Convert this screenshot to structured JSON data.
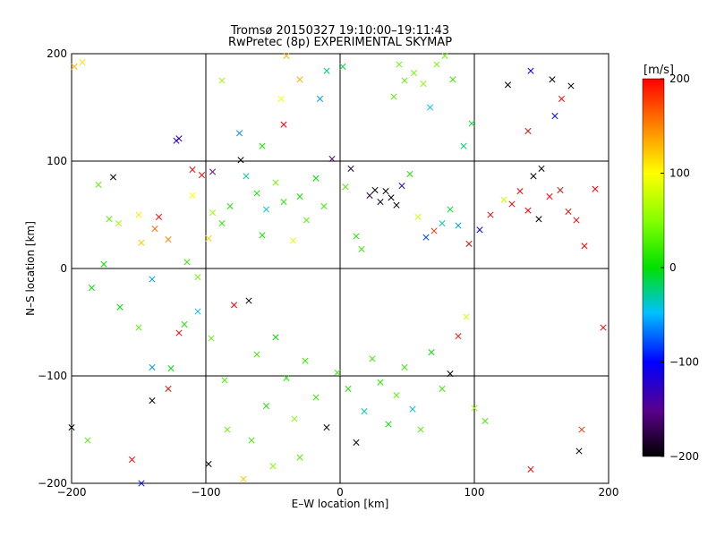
{
  "chart_data": {
    "type": "scatter",
    "title_line1": "Tromsø 20150327 19:10:00–19:11:43",
    "title_line2": "RwPretec (8p) EXPERIMENTAL SKYMAP",
    "xlabel": "E–W location [km]",
    "ylabel": "N–S location [km]",
    "xlim": [
      -200,
      200
    ],
    "ylim": [
      -200,
      200
    ],
    "xticks": [
      -200,
      -100,
      0,
      100,
      200
    ],
    "yticks": [
      -200,
      -100,
      0,
      100,
      200
    ],
    "grid": true,
    "colorbar": {
      "label": "[m/s]",
      "range": [
        -200,
        200
      ],
      "ticks": [
        200,
        100,
        0,
        -100,
        -200
      ]
    },
    "series": [
      {
        "values_note": "x (km), y (km), velocity (m/s), marker",
        "points": [
          [
            -192,
            192,
            110,
            "x"
          ],
          [
            -180,
            78,
            35,
            "x"
          ],
          [
            -172,
            46,
            35,
            "x"
          ],
          [
            -169,
            85,
            -200,
            "x"
          ],
          [
            -165,
            42,
            60,
            "x"
          ],
          [
            -150,
            50,
            110,
            "x"
          ],
          [
            -148,
            24,
            120,
            "x"
          ],
          [
            -138,
            37,
            160,
            "x"
          ],
          [
            -135,
            48,
            200,
            "x"
          ],
          [
            -128,
            27,
            150,
            "x"
          ],
          [
            -122,
            119,
            -130,
            "x"
          ],
          [
            -110,
            92,
            200,
            "x"
          ],
          [
            -103,
            87,
            200,
            "x"
          ],
          [
            -98,
            28,
            120,
            "x"
          ],
          [
            -95,
            52,
            60,
            "x"
          ],
          [
            -88,
            42,
            20,
            "x"
          ],
          [
            -82,
            58,
            10,
            "x"
          ],
          [
            -74,
            101,
            -200,
            "x"
          ],
          [
            -70,
            86,
            -30,
            "x"
          ],
          [
            -62,
            70,
            5,
            "x"
          ],
          [
            -58,
            31,
            10,
            "x"
          ],
          [
            -55,
            55,
            -40,
            "x"
          ],
          [
            -48,
            80,
            40,
            "x"
          ],
          [
            -42,
            62,
            15,
            "x"
          ],
          [
            -35,
            26,
            90,
            "x"
          ],
          [
            -30,
            67,
            5,
            "x"
          ],
          [
            -25,
            45,
            30,
            "x"
          ],
          [
            -18,
            84,
            0,
            "x"
          ],
          [
            -12,
            58,
            20,
            "x"
          ],
          [
            -6,
            102,
            -150,
            "x"
          ],
          [
            4,
            76,
            30,
            "x"
          ],
          [
            8,
            93,
            -180,
            "x"
          ],
          [
            12,
            30,
            10,
            "x"
          ],
          [
            16,
            18,
            20,
            "x"
          ],
          [
            22,
            68,
            -180,
            "x"
          ],
          [
            26,
            73,
            -200,
            "x"
          ],
          [
            30,
            62,
            -190,
            "x"
          ],
          [
            34,
            72,
            -200,
            "x"
          ],
          [
            38,
            66,
            -200,
            "x"
          ],
          [
            42,
            59,
            -190,
            "x"
          ],
          [
            46,
            77,
            -120,
            "x"
          ],
          [
            52,
            88,
            10,
            "x"
          ],
          [
            58,
            48,
            80,
            "x"
          ],
          [
            64,
            29,
            -80,
            "x"
          ],
          [
            70,
            35,
            180,
            "x"
          ],
          [
            76,
            42,
            -30,
            "x"
          ],
          [
            82,
            55,
            -10,
            "x"
          ],
          [
            88,
            40,
            -60,
            "x"
          ],
          [
            96,
            23,
            200,
            "x"
          ],
          [
            104,
            36,
            -100,
            "x"
          ],
          [
            112,
            50,
            200,
            "x"
          ],
          [
            122,
            64,
            80,
            "x"
          ],
          [
            128,
            60,
            200,
            "x"
          ],
          [
            134,
            72,
            200,
            "x"
          ],
          [
            140,
            54,
            200,
            "x"
          ],
          [
            148,
            46,
            -200,
            "x"
          ],
          [
            156,
            67,
            200,
            "x"
          ],
          [
            164,
            73,
            200,
            "x"
          ],
          [
            170,
            53,
            200,
            "x"
          ],
          [
            176,
            45,
            200,
            "x"
          ],
          [
            182,
            21,
            200,
            "x"
          ],
          [
            190,
            74,
            200,
            "x"
          ],
          [
            144,
            86,
            -200,
            "x"
          ],
          [
            160,
            142,
            -100,
            "x"
          ],
          [
            165,
            158,
            200,
            "x"
          ],
          [
            172,
            170,
            -200,
            "x"
          ],
          [
            158,
            176,
            -200,
            "x"
          ],
          [
            142,
            184,
            -100,
            "x"
          ],
          [
            125,
            171,
            -200,
            "x"
          ],
          [
            140,
            128,
            200,
            "x"
          ],
          [
            150,
            93,
            -200,
            "x"
          ],
          [
            -185,
            -18,
            0,
            "x"
          ],
          [
            -176,
            4,
            5,
            "x"
          ],
          [
            -164,
            -36,
            0,
            "x"
          ],
          [
            -150,
            -55,
            30,
            "x"
          ],
          [
            -140,
            -10,
            -60,
            "x"
          ],
          [
            -126,
            -93,
            0,
            "x"
          ],
          [
            -116,
            -52,
            10,
            "x"
          ],
          [
            -106,
            -8,
            40,
            "x"
          ],
          [
            -96,
            -65,
            35,
            "x"
          ],
          [
            -86,
            -104,
            30,
            "x"
          ],
          [
            -79,
            -34,
            200,
            "x"
          ],
          [
            -68,
            -30,
            -200,
            "x"
          ],
          [
            -62,
            -80,
            20,
            "x"
          ],
          [
            -55,
            -128,
            5,
            "x"
          ],
          [
            -48,
            -64,
            0,
            "x"
          ],
          [
            -40,
            -102,
            10,
            "x"
          ],
          [
            -34,
            -140,
            50,
            "x"
          ],
          [
            -26,
            -86,
            20,
            "x"
          ],
          [
            -18,
            -120,
            15,
            "x"
          ],
          [
            -10,
            -148,
            -200,
            "x"
          ],
          [
            -2,
            -97,
            20,
            "x"
          ],
          [
            6,
            -112,
            10,
            "x"
          ],
          [
            12,
            -162,
            -200,
            "x"
          ],
          [
            18,
            -133,
            -30,
            "x"
          ],
          [
            24,
            -84,
            25,
            "x"
          ],
          [
            30,
            -106,
            15,
            "x"
          ],
          [
            36,
            -145,
            0,
            "x"
          ],
          [
            42,
            -118,
            35,
            "x"
          ],
          [
            48,
            -92,
            20,
            "x"
          ],
          [
            54,
            -131,
            -40,
            "x"
          ],
          [
            60,
            -150,
            30,
            "x"
          ],
          [
            68,
            -78,
            0,
            "x"
          ],
          [
            76,
            -112,
            20,
            "x"
          ],
          [
            82,
            -98,
            -200,
            "x"
          ],
          [
            88,
            -63,
            190,
            "x"
          ],
          [
            94,
            -45,
            80,
            "x"
          ],
          [
            100,
            -130,
            60,
            "x"
          ],
          [
            108,
            -142,
            25,
            "x"
          ],
          [
            -188,
            -160,
            30,
            "x"
          ],
          [
            -155,
            -178,
            200,
            "x"
          ],
          [
            -140,
            -123,
            -200,
            "x"
          ],
          [
            -128,
            -112,
            200,
            "x"
          ],
          [
            -98,
            -182,
            -200,
            "x"
          ],
          [
            -72,
            -196,
            120,
            "x"
          ],
          [
            -84,
            -150,
            40,
            "x"
          ],
          [
            -66,
            -160,
            20,
            "x"
          ],
          [
            -50,
            -184,
            50,
            "x"
          ],
          [
            -30,
            -176,
            30,
            "x"
          ],
          [
            142,
            -187,
            200,
            "x"
          ],
          [
            178,
            -170,
            -200,
            "x"
          ],
          [
            180,
            -150,
            180,
            "x"
          ],
          [
            196,
            -55,
            200,
            "x"
          ],
          [
            -200,
            -148,
            -200,
            "x"
          ],
          [
            -148,
            -200,
            -100,
            "x"
          ],
          [
            -198,
            188,
            130,
            "x"
          ],
          [
            -44,
            158,
            100,
            "x"
          ],
          [
            -75,
            126,
            -60,
            "x"
          ],
          [
            -88,
            175,
            60,
            "x"
          ],
          [
            -120,
            121,
            -120,
            "x"
          ],
          [
            -30,
            176,
            130,
            "x"
          ],
          [
            -15,
            158,
            -60,
            "x"
          ],
          [
            -10,
            184,
            -20,
            "x"
          ],
          [
            2,
            188,
            -10,
            "x"
          ],
          [
            40,
            160,
            30,
            "x"
          ],
          [
            44,
            190,
            40,
            "x"
          ],
          [
            48,
            175,
            35,
            "x"
          ],
          [
            55,
            182,
            40,
            "x"
          ],
          [
            62,
            172,
            50,
            "x"
          ],
          [
            67,
            150,
            -40,
            "x"
          ],
          [
            72,
            190,
            45,
            "x"
          ],
          [
            78,
            198,
            40,
            "x"
          ],
          [
            84,
            176,
            20,
            "x"
          ],
          [
            92,
            114,
            -20,
            "x"
          ],
          [
            98,
            135,
            -10,
            "x"
          ],
          [
            -40,
            198,
            130,
            "x"
          ],
          [
            -42,
            134,
            200,
            "x"
          ],
          [
            -58,
            114,
            10,
            "x"
          ],
          [
            -95,
            90,
            -150,
            "x"
          ],
          [
            -110,
            68,
            100,
            "x"
          ],
          [
            -114,
            6,
            20,
            "x"
          ],
          [
            -106,
            -40,
            -50,
            "x"
          ],
          [
            -120,
            -60,
            200,
            "x"
          ],
          [
            -140,
            -92,
            -60,
            "x"
          ]
        ]
      }
    ]
  }
}
